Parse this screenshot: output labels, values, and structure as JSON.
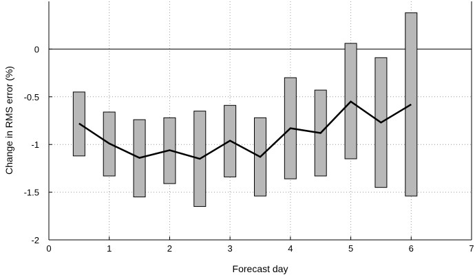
{
  "chart_data": {
    "type": "bar",
    "subtype": "floating-range-bars-with-mean-line",
    "title": "",
    "xlabel": "Forecast day",
    "ylabel": "Change in RMS error (%)",
    "xlim": [
      0,
      7
    ],
    "ylim": [
      -2,
      0.5
    ],
    "xticks": [
      0,
      1,
      2,
      3,
      4,
      5,
      6,
      7
    ],
    "yticks": [
      0,
      -0.5,
      -1,
      -1.5,
      -2
    ],
    "xtick_labels": [
      "0",
      "1",
      "2",
      "3",
      "4",
      "5",
      "6",
      "7"
    ],
    "ytick_labels": [
      "0",
      "-0.5",
      "-1",
      "-1.5",
      "-2"
    ],
    "vertical_grid": "dotted",
    "horizontal_grid": "dotted",
    "zero_line": true,
    "colors": {
      "bar_fill": "#b8b8b8",
      "bar_edge": "#000000",
      "line": "#000000",
      "grid": "#999999"
    },
    "x": [
      0.5,
      1.0,
      1.5,
      2.0,
      2.5,
      3.0,
      3.5,
      4.0,
      4.5,
      5.0,
      5.5,
      6.0
    ],
    "range_low": [
      -1.12,
      -1.33,
      -1.55,
      -1.41,
      -1.65,
      -1.34,
      -1.54,
      -1.36,
      -1.33,
      -1.15,
      -1.45,
      -1.54
    ],
    "range_high": [
      -0.45,
      -0.66,
      -0.74,
      -0.72,
      -0.65,
      -0.59,
      -0.72,
      -0.3,
      -0.43,
      0.06,
      -0.09,
      0.38
    ],
    "mean": [
      -0.78,
      -0.99,
      -1.14,
      -1.06,
      -1.15,
      -0.96,
      -1.13,
      -0.83,
      -0.88,
      -0.55,
      -0.77,
      -0.58
    ]
  }
}
